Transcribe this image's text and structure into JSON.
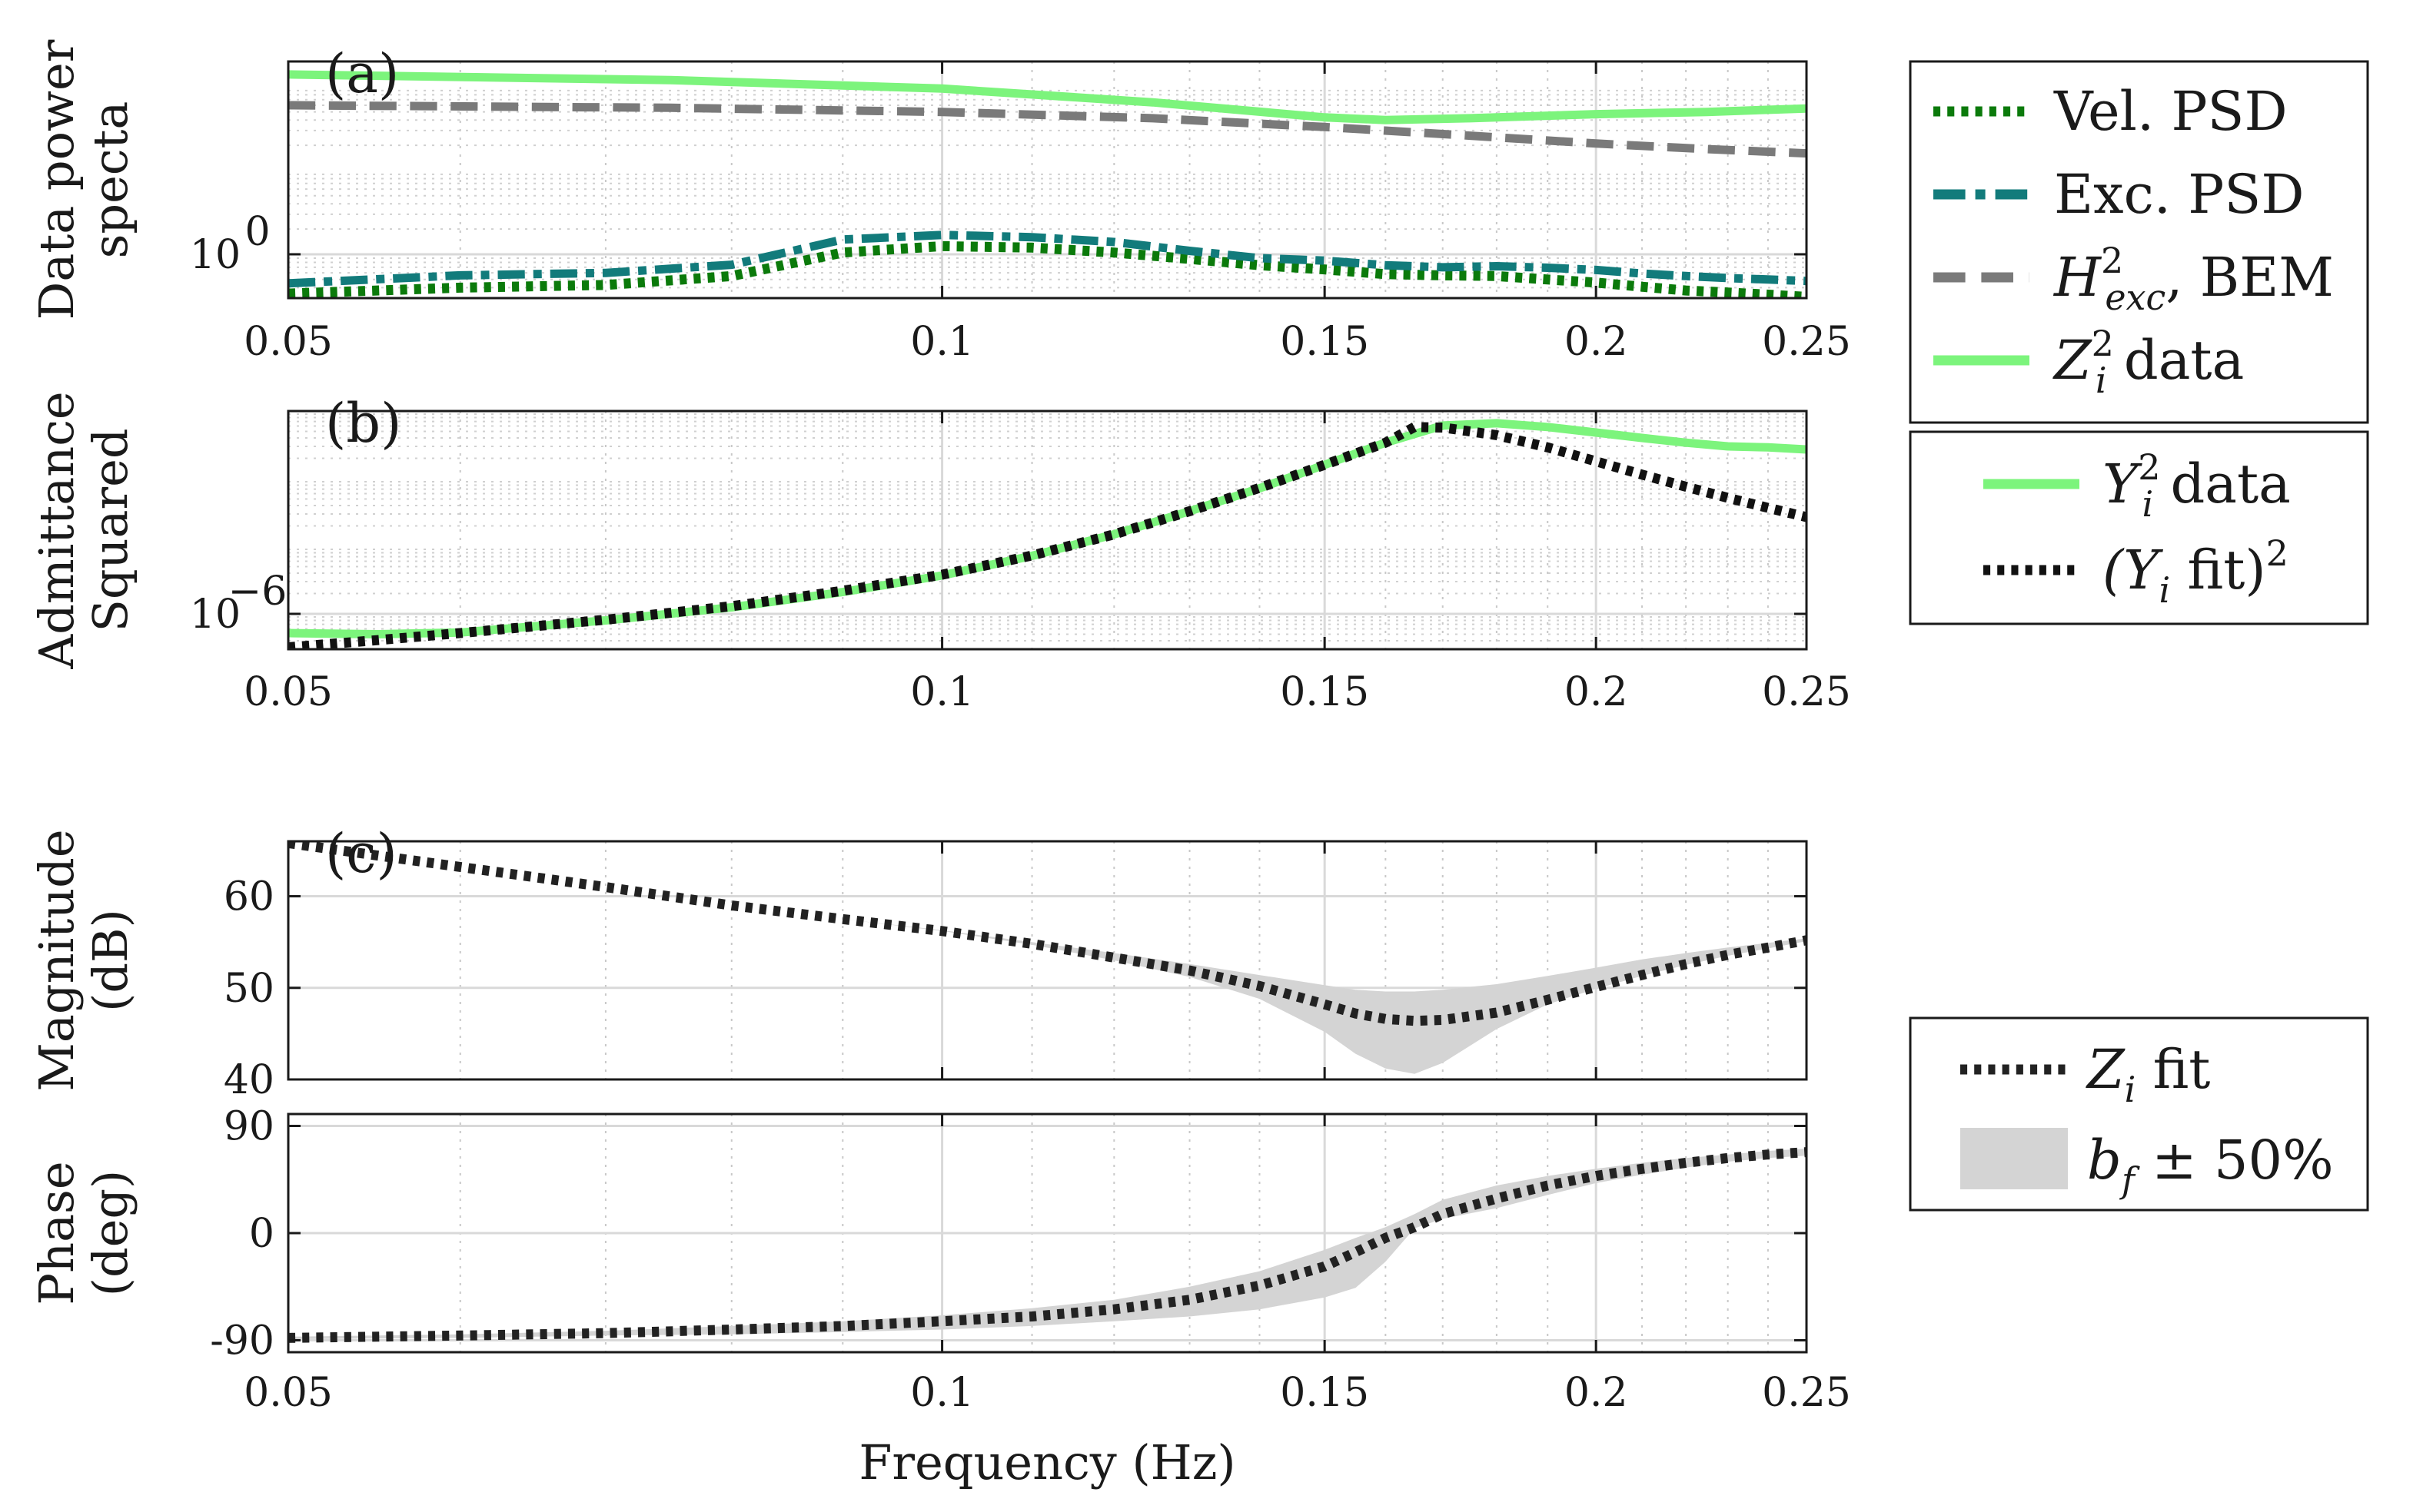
{
  "chart_data": [
    {
      "panel": "(a)",
      "type": "line",
      "ylabel_lines": [
        "Data power",
        "specta"
      ],
      "xscale": "log",
      "yscale": "log",
      "xlim": [
        0.05,
        0.25
      ],
      "ylim": [
        0.3,
        200
      ],
      "xticks": [
        0.05,
        0.1,
        0.15,
        0.2,
        0.25
      ],
      "xtick_labels": [
        "0.05",
        "0.1",
        "0.15",
        "0.2",
        "0.25"
      ],
      "yticks": [
        1
      ],
      "ytick_labels": [
        "10",
        "0"
      ],
      "grid": true,
      "series": [
        {
          "name": "Vel. PSD",
          "color": "#0b7a0b",
          "dash": "dotted",
          "x": [
            0.05,
            0.06,
            0.07,
            0.08,
            0.09,
            0.1,
            0.11,
            0.12,
            0.13,
            0.14,
            0.15,
            0.16,
            0.17,
            0.18,
            0.19,
            0.2,
            0.21,
            0.22,
            0.23,
            0.24,
            0.25
          ],
          "y": [
            0.34,
            0.4,
            0.43,
            0.55,
            1.05,
            1.25,
            1.2,
            1.05,
            0.88,
            0.74,
            0.66,
            0.58,
            0.56,
            0.55,
            0.5,
            0.46,
            0.41,
            0.37,
            0.35,
            0.33,
            0.31
          ]
        },
        {
          "name": "Exc. PSD",
          "color": "#127b7b",
          "dash": "dashdot",
          "x": [
            0.05,
            0.06,
            0.07,
            0.08,
            0.09,
            0.1,
            0.11,
            0.12,
            0.13,
            0.14,
            0.15,
            0.16,
            0.17,
            0.18,
            0.19,
            0.2,
            0.21,
            0.22,
            0.23,
            0.24,
            0.25
          ],
          "y": [
            0.45,
            0.56,
            0.6,
            0.75,
            1.5,
            1.7,
            1.6,
            1.4,
            1.1,
            0.9,
            0.84,
            0.74,
            0.7,
            0.72,
            0.69,
            0.65,
            0.59,
            0.55,
            0.52,
            0.5,
            0.48
          ]
        },
        {
          "name": "H_exc^2, BEM",
          "color": "#7a7a7a",
          "dash": "dashed",
          "x": [
            0.05,
            0.075,
            0.1,
            0.125,
            0.15,
            0.175,
            0.2,
            0.225,
            0.25
          ],
          "y": [
            60,
            56,
            50,
            42,
            33,
            26,
            21,
            18,
            16
          ]
        },
        {
          "name": "Z_i^2 data",
          "color": "#7cf47c",
          "dash": "solid",
          "x": [
            0.05,
            0.075,
            0.1,
            0.125,
            0.15,
            0.16,
            0.175,
            0.2,
            0.225,
            0.25
          ],
          "y": [
            140,
            120,
            95,
            65,
            43,
            40,
            42,
            47,
            50,
            55
          ]
        }
      ]
    },
    {
      "panel": "(b)",
      "type": "line",
      "ylabel_lines": [
        "Admittance",
        "Squared"
      ],
      "xscale": "log",
      "yscale": "log",
      "xlim": [
        0.05,
        0.25
      ],
      "ylim": [
        3e-07,
        0.001
      ],
      "xticks": [
        0.05,
        0.1,
        0.15,
        0.2,
        0.25
      ],
      "xtick_labels": [
        "0.05",
        "0.1",
        "0.15",
        "0.2",
        "0.25"
      ],
      "yticks": [
        1e-06
      ],
      "ytick_labels": [
        "10",
        "−6"
      ],
      "grid": true,
      "series": [
        {
          "name": "Y_i^2 data",
          "color": "#7cf47c",
          "dash": "solid",
          "x": [
            0.05,
            0.055,
            0.06,
            0.07,
            0.08,
            0.09,
            0.1,
            0.11,
            0.12,
            0.13,
            0.14,
            0.15,
            0.16,
            0.17,
            0.18,
            0.19,
            0.2,
            0.21,
            0.22,
            0.23,
            0.24,
            0.25
          ],
          "y": [
            5.2e-07,
            5e-07,
            5.3e-07,
            8e-07,
            1.25e-06,
            2.1e-06,
            3.7e-06,
            7.2e-06,
            1.5e-05,
            3.3e-05,
            7.2e-05,
            0.00016,
            0.00034,
            0.00061,
            0.00066,
            0.00058,
            0.00048,
            0.0004,
            0.00034,
            0.0003,
            0.00029,
            0.00027
          ]
        },
        {
          "name": "(Y_i fit)^2",
          "color": "#111111",
          "dash": "dotted",
          "x": [
            0.05,
            0.055,
            0.06,
            0.07,
            0.08,
            0.09,
            0.1,
            0.11,
            0.12,
            0.13,
            0.14,
            0.15,
            0.16,
            0.165,
            0.17,
            0.18,
            0.19,
            0.2,
            0.21,
            0.22,
            0.23,
            0.24,
            0.25
          ],
          "y": [
            3.2e-07,
            4.1e-07,
            5.2e-07,
            8.2e-07,
            1.3e-06,
            2.2e-06,
            3.8e-06,
            7.3e-06,
            1.5e-05,
            3.3e-05,
            7.3e-05,
            0.00016,
            0.00034,
            0.00058,
            0.00057,
            0.00044,
            0.00029,
            0.00018,
            0.000115,
            7.6e-05,
            5.2e-05,
            3.7e-05,
            2.7e-05
          ]
        }
      ]
    },
    {
      "panel": "(c)",
      "type": "line",
      "ylabel_lines": [
        "Magnitude",
        "(dB)"
      ],
      "xscale": "log",
      "xlim": [
        0.05,
        0.25
      ],
      "ylim": [
        40,
        66
      ],
      "xticks": [
        0.05,
        0.1,
        0.15,
        0.2,
        0.25
      ],
      "xtick_labels": [
        "",
        "",
        "",
        "",
        ""
      ],
      "yticks": [
        40,
        50,
        60
      ],
      "ytick_labels": [
        "40",
        "50",
        "60"
      ],
      "grid": true,
      "series": [
        {
          "name": "Z_i fit",
          "color": "#222222",
          "dash": "dotted",
          "x": [
            0.05,
            0.06,
            0.07,
            0.08,
            0.09,
            0.1,
            0.11,
            0.12,
            0.13,
            0.14,
            0.15,
            0.155,
            0.16,
            0.165,
            0.17,
            0.18,
            0.19,
            0.2,
            0.21,
            0.22,
            0.23,
            0.24,
            0.25
          ],
          "y": [
            65.8,
            63.2,
            61.0,
            59.0,
            57.5,
            56.2,
            54.8,
            53.3,
            51.9,
            50.2,
            48.2,
            47.2,
            46.6,
            46.4,
            46.5,
            47.3,
            48.7,
            50.1,
            51.4,
            52.6,
            53.6,
            54.4,
            55.2
          ]
        }
      ],
      "band": {
        "name": "b_f ± 50%",
        "color": "#d4d4d4",
        "x": [
          0.05,
          0.06,
          0.07,
          0.08,
          0.09,
          0.1,
          0.11,
          0.12,
          0.13,
          0.14,
          0.15,
          0.155,
          0.16,
          0.165,
          0.17,
          0.18,
          0.19,
          0.2,
          0.21,
          0.22,
          0.23,
          0.24,
          0.25
        ],
        "lower": [
          65.8,
          63.2,
          61.0,
          59.0,
          57.5,
          56.2,
          54.7,
          53.0,
          51.2,
          48.8,
          45.2,
          42.8,
          41.2,
          40.6,
          41.8,
          45.5,
          48.2,
          49.9,
          51.3,
          52.5,
          53.5,
          54.3,
          55.1
        ],
        "upper": [
          65.8,
          63.2,
          61.0,
          59.0,
          57.5,
          56.3,
          55.0,
          53.8,
          52.6,
          51.4,
          50.3,
          49.8,
          49.6,
          49.6,
          49.8,
          50.4,
          51.3,
          52.2,
          53.1,
          53.8,
          54.4,
          54.9,
          55.4
        ]
      }
    },
    {
      "panel": "",
      "type": "line",
      "ylabel_lines": [
        "Phase",
        "(deg)"
      ],
      "xlabel": "Frequency (Hz)",
      "xscale": "log",
      "xlim": [
        0.05,
        0.25
      ],
      "ylim": [
        -100,
        100
      ],
      "xticks": [
        0.05,
        0.1,
        0.15,
        0.2,
        0.25
      ],
      "xtick_labels": [
        "0.05",
        "0.1",
        "0.15",
        "0.2",
        "0.25"
      ],
      "yticks": [
        -90,
        0,
        90
      ],
      "ytick_labels": [
        "-90",
        "0",
        "90"
      ],
      "grid": true,
      "series": [
        {
          "name": "Z_i fit",
          "color": "#222222",
          "dash": "dotted",
          "x": [
            0.05,
            0.06,
            0.07,
            0.08,
            0.09,
            0.1,
            0.11,
            0.12,
            0.13,
            0.14,
            0.15,
            0.155,
            0.16,
            0.165,
            0.17,
            0.18,
            0.19,
            0.2,
            0.21,
            0.22,
            0.23,
            0.24,
            0.25
          ],
          "y": [
            -88,
            -86,
            -84,
            -81,
            -78,
            -74,
            -70,
            -64,
            -56,
            -44,
            -28,
            -16,
            -4,
            5,
            16,
            29,
            40,
            48,
            54,
            59,
            63,
            66,
            68
          ]
        }
      ],
      "band": {
        "name": "b_f ± 50%",
        "color": "#d4d4d4",
        "x": [
          0.05,
          0.06,
          0.07,
          0.08,
          0.09,
          0.1,
          0.11,
          0.12,
          0.13,
          0.14,
          0.15,
          0.155,
          0.16,
          0.165,
          0.17,
          0.18,
          0.19,
          0.2,
          0.21,
          0.22,
          0.23,
          0.24,
          0.25
        ],
        "lower": [
          -89,
          -88,
          -86,
          -85,
          -83,
          -81,
          -78,
          -74,
          -70,
          -64,
          -54,
          -46,
          -24,
          4,
          12,
          21,
          32,
          42,
          49,
          55,
          60,
          63,
          65
        ],
        "upper": [
          -87,
          -85,
          -82,
          -78,
          -74,
          -69,
          -63,
          -56,
          -45,
          -32,
          -14,
          -4,
          5,
          16,
          28,
          40,
          48,
          54,
          59,
          63,
          66,
          69,
          71
        ]
      }
    }
  ],
  "legends": {
    "top": [
      {
        "label": "Vel. PSD",
        "color": "#0b7a0b",
        "dash": "dotted"
      },
      {
        "label": "Exc. PSD",
        "color": "#127b7b",
        "dash": "dashdot"
      },
      {
        "label": "H",
        "sup": "2",
        "sub": "exc",
        "tail": ", BEM",
        "color": "#7a7a7a",
        "dash": "dashed"
      },
      {
        "label": "Z",
        "sup": "2",
        "sub": "i",
        "tail": " data",
        "color": "#7cf47c",
        "dash": "solid"
      }
    ],
    "middle": [
      {
        "label": "Y",
        "sup": "2",
        "sub": "i",
        "tail": " data",
        "color": "#7cf47c",
        "dash": "solid"
      },
      {
        "label": "(Y",
        "sub": "i",
        "tail": " fit)",
        "sup_after": "2",
        "color": "#111111",
        "dash": "dotted"
      }
    ],
    "bottom": [
      {
        "label": "Z",
        "sub": "i",
        "tail": " fit",
        "color": "#222222",
        "dash": "dotted"
      },
      {
        "label": "b",
        "sub": "f",
        "tail": " ± 50%",
        "color": "#d4d4d4",
        "dash": "patch"
      }
    ]
  }
}
